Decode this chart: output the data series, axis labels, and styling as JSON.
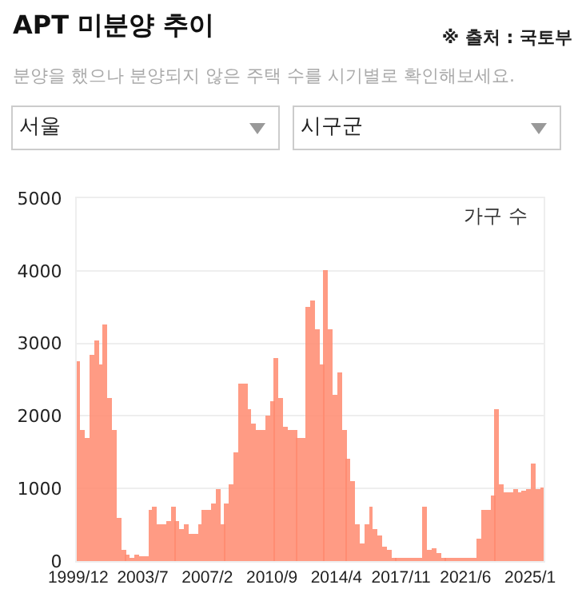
{
  "chart_data": {
    "type": "bar",
    "title": "APT 미분양 추이",
    "subtitle": "분양을 했으나 분양되지 않은 주택 수를 시기별로 확인해보세요.",
    "annotations": [
      "※ 출처 : 국토부",
      "가구 수",
      "서울",
      "시구군"
    ],
    "x": [
      "1999-12",
      "2000-03",
      "2000-06",
      "2000-09",
      "2000-12",
      "2001-03",
      "2001-06",
      "2001-09",
      "2001-12",
      "2002-03",
      "2002-06",
      "2002-09",
      "2002-12",
      "2003-03",
      "2003-06",
      "2003-09",
      "2003-12",
      "2004-03",
      "2004-06",
      "2004-09",
      "2004-12",
      "2005-03",
      "2005-06",
      "2005-09",
      "2005-12",
      "2006-03",
      "2006-06",
      "2006-09",
      "2006-12",
      "2007-03",
      "2007-06",
      "2007-09",
      "2007-12",
      "2008-03",
      "2008-06",
      "2008-09",
      "2008-12",
      "2009-03",
      "2009-06",
      "2009-09",
      "2009-12",
      "2010-03",
      "2010-06",
      "2010-09",
      "2010-12",
      "2011-03",
      "2011-06",
      "2011-09",
      "2011-12",
      "2012-03",
      "2012-06",
      "2012-09",
      "2012-12",
      "2013-03",
      "2013-06",
      "2013-09",
      "2013-12",
      "2014-03",
      "2014-06",
      "2014-09",
      "2014-12",
      "2015-03",
      "2015-06",
      "2015-09",
      "2015-12",
      "2016-03",
      "2016-06",
      "2016-09",
      "2016-12",
      "2017-03",
      "2017-06",
      "2017-09",
      "2017-12",
      "2018-03",
      "2018-06",
      "2018-09",
      "2018-12",
      "2019-03",
      "2019-06",
      "2019-09",
      "2019-12",
      "2020-03",
      "2020-06",
      "2020-09",
      "2020-12",
      "2021-03",
      "2021-06",
      "2021-09",
      "2021-12",
      "2022-03",
      "2022-06",
      "2022-09",
      "2022-12",
      "2023-03",
      "2023-06",
      "2023-09",
      "2023-12",
      "2024-03",
      "2024-06",
      "2024-09",
      "2024-12",
      "2025-03",
      "2025-06",
      "2025-09"
    ],
    "values": [
      2760,
      1800,
      1700,
      2850,
      3050,
      2700,
      3250,
      2250,
      1800,
      600,
      150,
      80,
      50,
      80,
      60,
      60,
      700,
      750,
      500,
      500,
      550,
      750,
      550,
      430,
      500,
      370,
      380,
      500,
      700,
      700,
      800,
      1000,
      500,
      800,
      1050,
      1500,
      2450,
      2450,
      2100,
      1900,
      1800,
      1800,
      2000,
      2200,
      2800,
      2250,
      1850,
      1800,
      1800,
      1700,
      1700,
      3500,
      3600,
      3200,
      2700,
      4000,
      3200,
      2300,
      2600,
      1800,
      1400,
      1100,
      500,
      250,
      500,
      750,
      450,
      350,
      200,
      150,
      50,
      50,
      40,
      40,
      30,
      30,
      30,
      750,
      150,
      180,
      100,
      50,
      50,
      50,
      40,
      50,
      50,
      40,
      40,
      300,
      700,
      700,
      900,
      2100,
      1050,
      950,
      950,
      1000,
      950,
      980,
      1000,
      1350,
      1000,
      1020
    ],
    "color": "#ff8a6e",
    "xlim": [
      "1999-11",
      "2025-10"
    ],
    "xticks": [
      {
        "value": "1999-12",
        "label": "1999/12"
      },
      {
        "value": "2003-07",
        "label": "2003/7"
      },
      {
        "value": "2007-02",
        "label": "2007/2"
      },
      {
        "value": "2010-09",
        "label": "2010/9"
      },
      {
        "value": "2014-04",
        "label": "2014/4"
      },
      {
        "value": "2017-11",
        "label": "2017/11"
      },
      {
        "value": "2021-06",
        "label": "2021/6"
      },
      {
        "value": "2025-01",
        "label": "2025/1"
      }
    ],
    "ylim": [
      0,
      5000
    ],
    "yticks": [
      0,
      1000,
      2000,
      3000,
      4000,
      5000
    ],
    "grid": "y"
  }
}
